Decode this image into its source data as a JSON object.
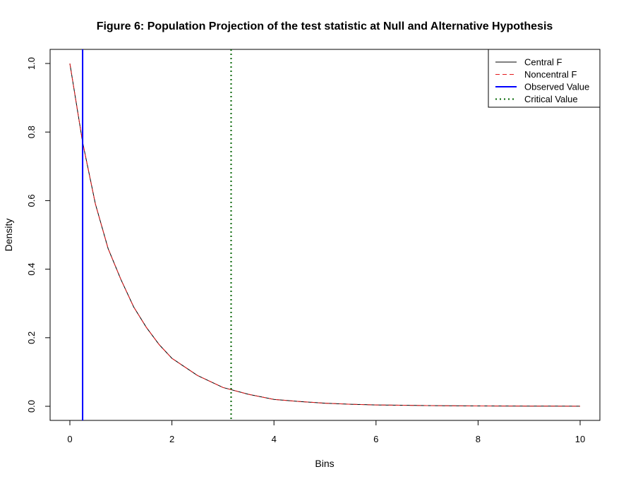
{
  "chart_data": {
    "type": "line",
    "title": "Figure 6: Population Projection of the test statistic at Null and Alternative Hypothesis",
    "xlabel": "Bins",
    "ylabel": "Density",
    "xlim": [
      0,
      10
    ],
    "ylim": [
      0,
      1
    ],
    "x_ticks": [
      "0",
      "2",
      "4",
      "6",
      "8",
      "10"
    ],
    "y_ticks": [
      "0.0",
      "0.2",
      "0.4",
      "0.6",
      "0.8",
      "1.0"
    ],
    "series": [
      {
        "name": "Central F",
        "color": "#000000",
        "dash": "solid",
        "x": [
          0,
          0.25,
          0.5,
          0.75,
          1,
          1.25,
          1.5,
          1.75,
          2,
          2.5,
          3,
          3.5,
          4,
          4.5,
          5,
          5.5,
          6,
          6.5,
          7,
          7.5,
          8,
          8.5,
          9,
          9.5,
          10
        ],
        "y": [
          1.0,
          0.77,
          0.59,
          0.46,
          0.37,
          0.29,
          0.23,
          0.18,
          0.14,
          0.09,
          0.055,
          0.035,
          0.02,
          0.014,
          0.009,
          0.006,
          0.004,
          0.003,
          0.002,
          0.0015,
          0.001,
          0.0008,
          0.0006,
          0.0004,
          0.0003
        ]
      },
      {
        "name": "Noncentral F",
        "color": "#e31a1c",
        "dash": "dashed",
        "x": [
          0,
          0.25,
          0.5,
          0.75,
          1,
          1.25,
          1.5,
          1.75,
          2,
          2.5,
          3,
          3.5,
          4,
          4.5,
          5,
          5.5,
          6,
          6.5,
          7,
          7.5,
          8,
          8.5,
          9,
          9.5,
          10
        ],
        "y": [
          1.0,
          0.77,
          0.59,
          0.46,
          0.37,
          0.29,
          0.23,
          0.18,
          0.14,
          0.09,
          0.055,
          0.035,
          0.02,
          0.014,
          0.009,
          0.006,
          0.004,
          0.003,
          0.002,
          0.0015,
          0.001,
          0.0008,
          0.0006,
          0.0004,
          0.0003
        ]
      }
    ],
    "vlines": [
      {
        "name": "Observed Value",
        "x": 0.25,
        "color": "#0000ff",
        "dash": "solid"
      },
      {
        "name": "Critical Value",
        "x": 3.16,
        "color": "#006400",
        "dash": "dotted"
      }
    ],
    "legend": {
      "position": "top-right",
      "entries": [
        {
          "label": "Central F",
          "color": "#000000",
          "dash": "solid",
          "width": 1
        },
        {
          "label": "Noncentral F",
          "color": "#e31a1c",
          "dash": "dashed",
          "width": 1
        },
        {
          "label": "Observed Value",
          "color": "#0000ff",
          "dash": "solid",
          "width": 2
        },
        {
          "label": "Critical Value",
          "color": "#006400",
          "dash": "dotted",
          "width": 2
        }
      ]
    }
  }
}
